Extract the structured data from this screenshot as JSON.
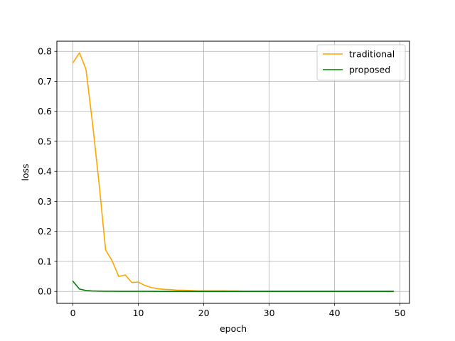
{
  "chart_data": {
    "type": "line",
    "title": "",
    "xlabel": "epoch",
    "ylabel": "loss",
    "xlim": [
      -2.45,
      51.45
    ],
    "ylim": [
      -0.0397,
      0.8337
    ],
    "xticks": [
      0,
      10,
      20,
      30,
      40,
      50
    ],
    "yticks": [
      0.0,
      0.1,
      0.2,
      0.3,
      0.4,
      0.5,
      0.6,
      0.7,
      0.8
    ],
    "xtick_labels": [
      "0",
      "10",
      "20",
      "30",
      "40",
      "50"
    ],
    "ytick_labels": [
      "0.0",
      "0.1",
      "0.2",
      "0.3",
      "0.4",
      "0.5",
      "0.6",
      "0.7",
      "0.8"
    ],
    "grid": true,
    "legend_position": "top-right",
    "x": [
      0,
      1,
      2,
      3,
      4,
      5,
      6,
      7,
      8,
      9,
      10,
      11,
      12,
      13,
      14,
      15,
      16,
      17,
      18,
      19,
      20,
      21,
      22,
      23,
      24,
      25,
      26,
      27,
      28,
      29,
      30,
      31,
      32,
      33,
      34,
      35,
      36,
      37,
      38,
      39,
      40,
      41,
      42,
      43,
      44,
      45,
      46,
      47,
      48,
      49
    ],
    "series": [
      {
        "name": "traditional",
        "color": "#ffa500",
        "values": [
          0.762,
          0.795,
          0.74,
          0.56,
          0.36,
          0.138,
          0.102,
          0.05,
          0.055,
          0.03,
          0.031,
          0.02,
          0.013,
          0.009,
          0.007,
          0.006,
          0.004,
          0.004,
          0.003,
          0.002,
          0.002,
          0.002,
          0.002,
          0.002,
          0.0015,
          0.0015,
          0.001,
          0.001,
          0.001,
          0.001,
          0.001,
          0.001,
          0.001,
          0.001,
          0.001,
          0.001,
          0.001,
          0.001,
          0.001,
          0.001,
          0.001,
          0.001,
          0.001,
          0.001,
          0.001,
          0.001,
          0.001,
          0.001,
          0.001,
          0.001
        ]
      },
      {
        "name": "proposed",
        "color": "#008000",
        "values": [
          0.034,
          0.008,
          0.003,
          0.0015,
          0.001,
          0.0008,
          0.0006,
          0.0005,
          0.0004,
          0.0004,
          0.0003,
          0.0003,
          0.0003,
          0.0002,
          0.0002,
          0.0002,
          0.0002,
          0.0002,
          0.0002,
          0.0002,
          0.0002,
          0.0002,
          0.0002,
          0.0002,
          0.0002,
          0.0002,
          0.0002,
          0.0002,
          0.0002,
          0.0002,
          0.0002,
          0.0002,
          0.0002,
          0.0002,
          0.0002,
          0.0002,
          0.0002,
          0.0002,
          0.0002,
          0.0002,
          0.0002,
          0.0002,
          0.0002,
          0.0002,
          0.0002,
          0.0002,
          0.0002,
          0.0002,
          0.0002,
          0.0002
        ]
      }
    ]
  }
}
